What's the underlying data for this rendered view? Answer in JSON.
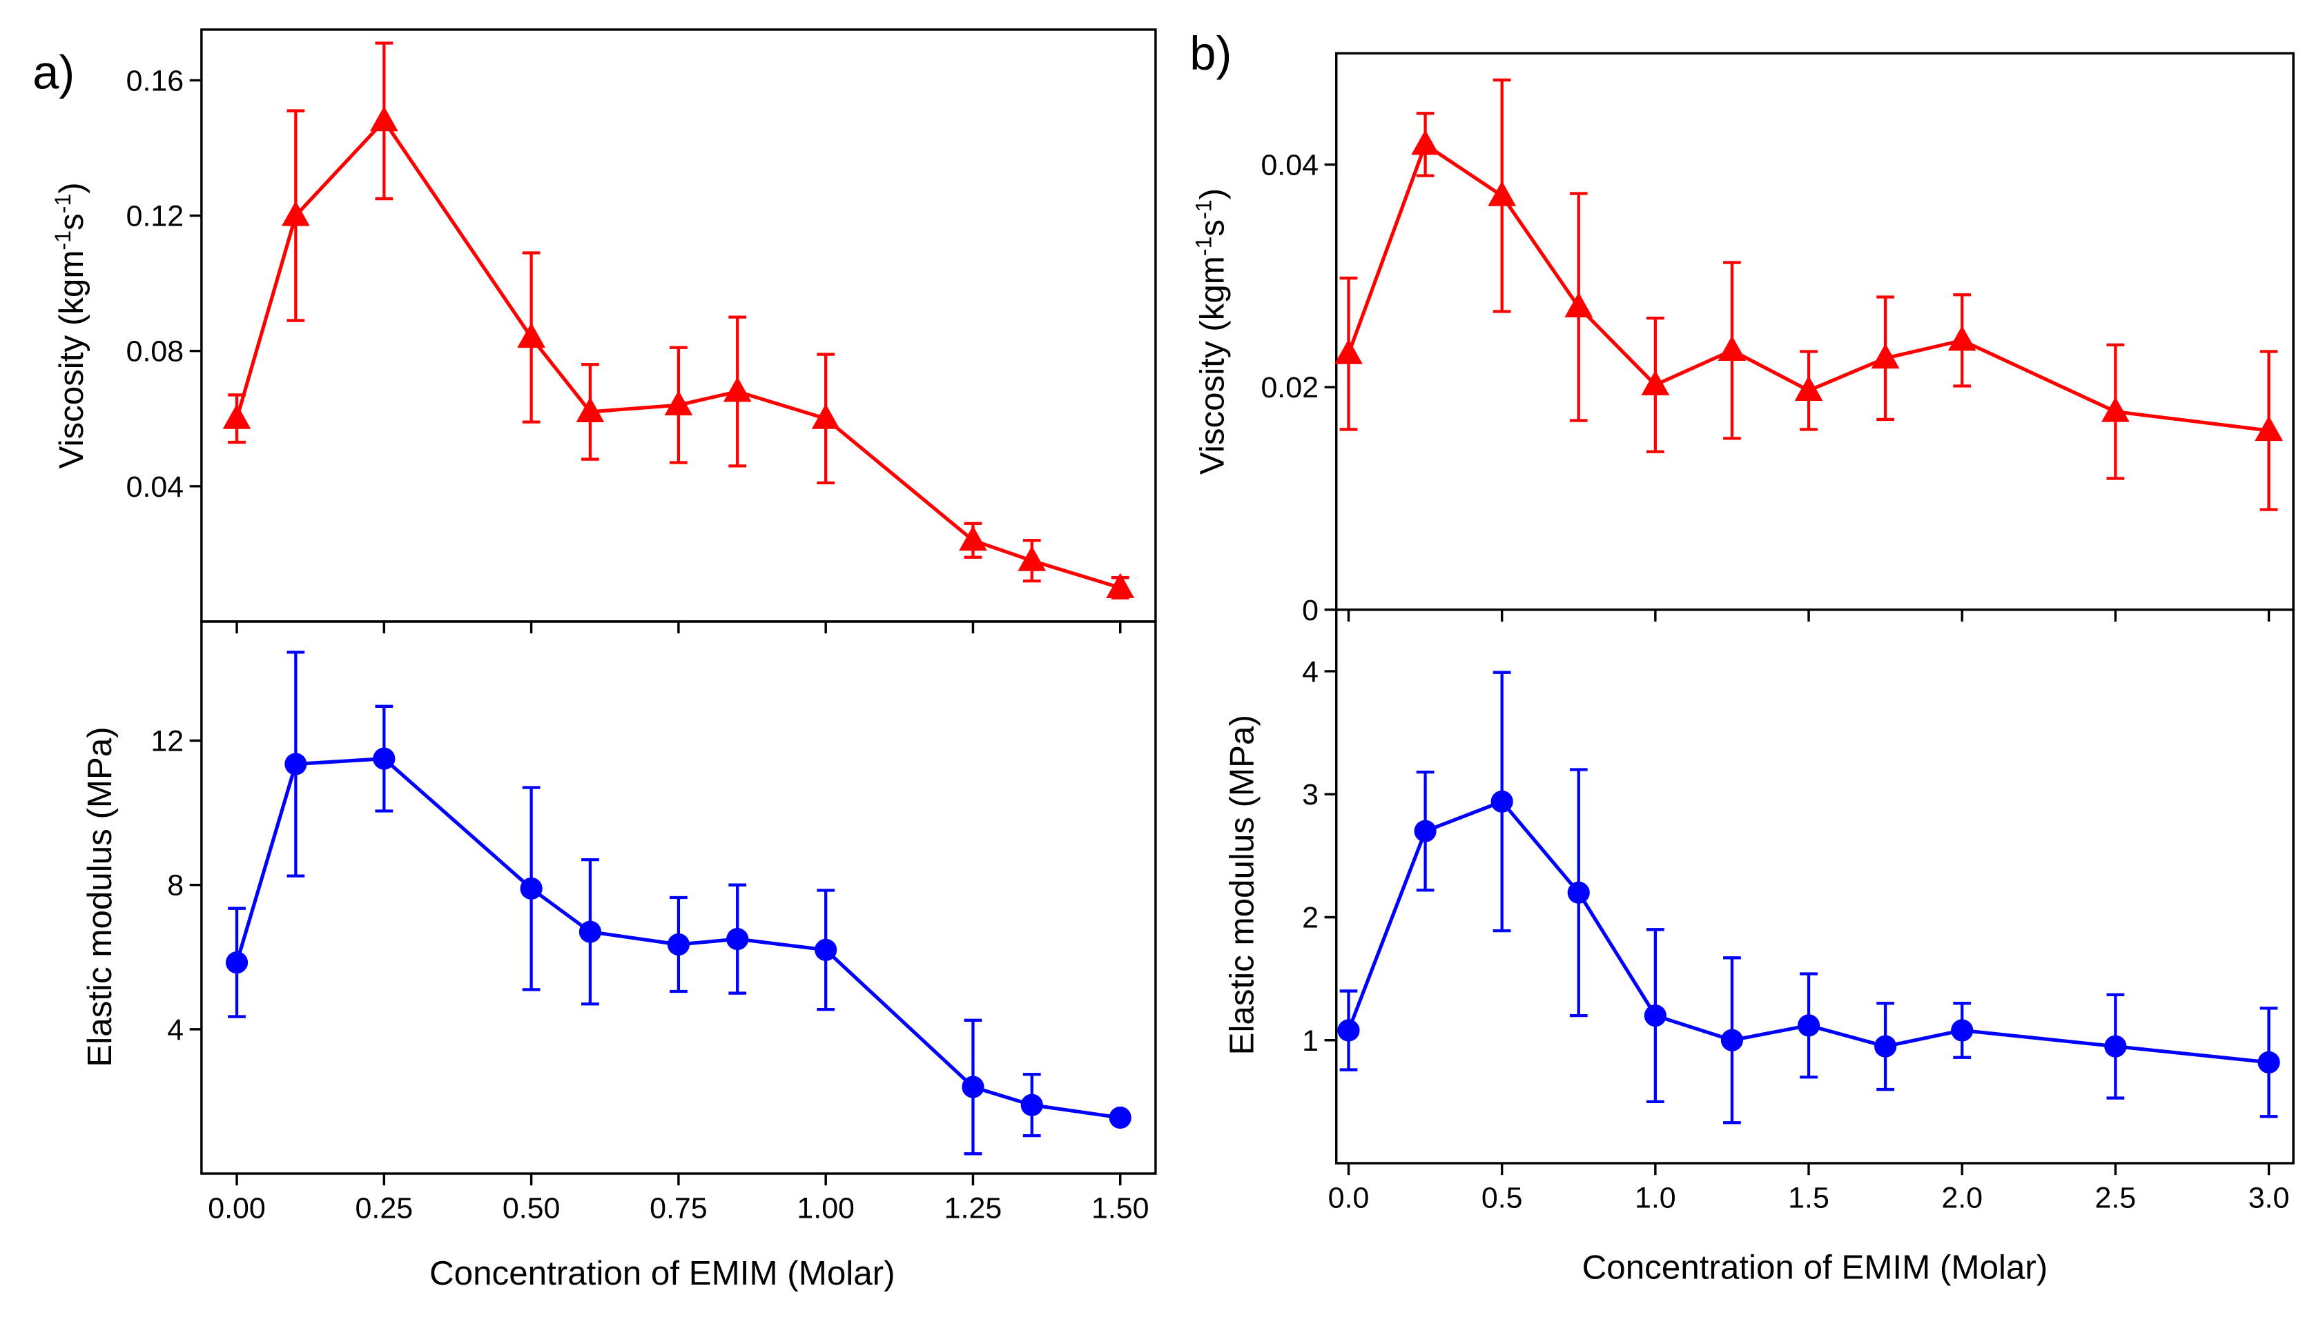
{
  "panel_labels": {
    "a": "a)",
    "b": "b)"
  },
  "xlabel": "Concentration of EMIM (Molar)",
  "colors": {
    "viscosity": "#ff0000",
    "modulus": "#0000ff",
    "axes": "#000000"
  },
  "chart_data": [
    {
      "id": "a-viscosity",
      "panel": "a",
      "type": "line",
      "marker": "triangle",
      "color": "#ff0000",
      "ylabel": "Viscosity (kgm-1s-1)",
      "xlim": [
        -0.06,
        1.56
      ],
      "ylim": [
        0.0,
        0.175
      ],
      "xticks": [
        0,
        0.25,
        0.5,
        0.75,
        1.0,
        1.25,
        1.5
      ],
      "xtick_labels": [
        "0.00",
        "0.25",
        "0.50",
        "0.75",
        "1.00",
        "1.25",
        "1.50"
      ],
      "show_xtick_labels": false,
      "yticks": [
        0.04,
        0.08,
        0.12,
        0.16
      ],
      "ytick_labels": [
        "0.04",
        "0.08",
        "0.12",
        "0.16"
      ],
      "x": [
        0,
        0.1,
        0.25,
        0.5,
        0.6,
        0.75,
        0.85,
        1.0,
        1.25,
        1.35,
        1.5
      ],
      "y": [
        0.06,
        0.12,
        0.148,
        0.084,
        0.062,
        0.064,
        0.068,
        0.06,
        0.024,
        0.018,
        0.01
      ],
      "err": [
        0.007,
        0.031,
        0.023,
        0.025,
        0.014,
        0.017,
        0.022,
        0.019,
        0.005,
        0.006,
        0.003
      ]
    },
    {
      "id": "a-modulus",
      "panel": "a",
      "type": "line",
      "marker": "circle",
      "color": "#0000ff",
      "ylabel": "Elastic modulus (MPa)",
      "xlim": [
        -0.06,
        1.56
      ],
      "ylim": [
        0.0,
        15.3
      ],
      "xticks": [
        0,
        0.25,
        0.5,
        0.75,
        1.0,
        1.25,
        1.5
      ],
      "xtick_labels": [
        "0.00",
        "0.25",
        "0.50",
        "0.75",
        "1.00",
        "1.25",
        "1.50"
      ],
      "show_xtick_labels": true,
      "yticks": [
        4,
        8,
        12
      ],
      "ytick_labels": [
        "4",
        "8",
        "12"
      ],
      "x": [
        0,
        0.1,
        0.25,
        0.5,
        0.6,
        0.75,
        0.85,
        1.0,
        1.25,
        1.35,
        1.5
      ],
      "y": [
        5.85,
        11.35,
        11.5,
        7.9,
        6.7,
        6.35,
        6.5,
        6.2,
        2.4,
        1.9,
        1.55
      ],
      "err": [
        1.5,
        3.1,
        1.45,
        2.8,
        2.0,
        1.3,
        1.5,
        1.65,
        1.85,
        0.85,
        0.05
      ]
    },
    {
      "id": "b-viscosity",
      "panel": "b",
      "type": "line",
      "marker": "triangle",
      "color": "#ff0000",
      "ylabel": "Viscosity (kgm-1s-1)",
      "xlim": [
        -0.04,
        3.08
      ],
      "ylim": [
        0.0,
        0.05
      ],
      "xticks": [
        0,
        0.5,
        1.0,
        1.5,
        2.0,
        2.5,
        3.0
      ],
      "xtick_labels": [
        "0.0",
        "0.5",
        "1.0",
        "1.5",
        "2.0",
        "2.5",
        "3.0"
      ],
      "show_xtick_labels": false,
      "yticks": [
        0,
        0.02,
        0.04
      ],
      "ytick_labels": [
        "0",
        "0.02",
        "0.04"
      ],
      "x": [
        0,
        0.25,
        0.5,
        0.75,
        1.0,
        1.25,
        1.5,
        1.75,
        2.0,
        2.5,
        3.0
      ],
      "y": [
        0.023,
        0.0418,
        0.0372,
        0.0272,
        0.0202,
        0.0233,
        0.0197,
        0.0226,
        0.0242,
        0.0178,
        0.0161
      ],
      "err": [
        0.0068,
        0.0028,
        0.0104,
        0.0102,
        0.006,
        0.0079,
        0.0035,
        0.0055,
        0.0041,
        0.006,
        0.0071
      ]
    },
    {
      "id": "b-modulus",
      "panel": "b",
      "type": "line",
      "marker": "circle",
      "color": "#0000ff",
      "ylabel": "Elastic modulus (MPa)",
      "xlim": [
        -0.04,
        3.08
      ],
      "ylim": [
        0.0,
        4.5
      ],
      "xticks": [
        0,
        0.5,
        1.0,
        1.5,
        2.0,
        2.5,
        3.0
      ],
      "xtick_labels": [
        "0.0",
        "0.5",
        "1.0",
        "1.5",
        "2.0",
        "2.5",
        "3.0"
      ],
      "show_xtick_labels": true,
      "yticks": [
        1,
        2,
        3,
        4
      ],
      "ytick_labels": [
        "1",
        "2",
        "3",
        "4"
      ],
      "x": [
        0,
        0.25,
        0.5,
        0.75,
        1.0,
        1.25,
        1.5,
        1.75,
        2.0,
        2.5,
        3.0
      ],
      "y": [
        1.08,
        2.7,
        2.94,
        2.2,
        1.2,
        1.0,
        1.12,
        0.95,
        1.08,
        0.95,
        0.82
      ],
      "err": [
        0.32,
        0.48,
        1.05,
        1.0,
        0.7,
        0.67,
        0.42,
        0.35,
        0.22,
        0.42,
        0.44
      ]
    }
  ]
}
